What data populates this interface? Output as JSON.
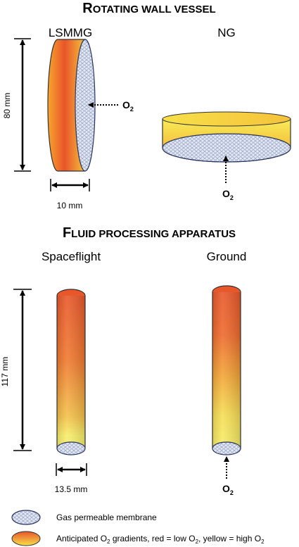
{
  "rwv": {
    "title_first": "R",
    "title_rest": "OTATING WALL VESSEL",
    "label_left": "LSMMG",
    "label_right": "NG",
    "height_dim": "80 mm",
    "width_dim": "10 mm",
    "o2_main": "O",
    "o2_sub": "2"
  },
  "fpa": {
    "title_first": "F",
    "title_rest": "LUID PROCESSING APPARATUS",
    "label_left": "Spaceflight",
    "label_right": "Ground",
    "height_dim": "117 mm",
    "width_dim": "13.5 mm",
    "o2_main": "O",
    "o2_sub": "2"
  },
  "legend": {
    "membrane": "Gas permeable membrane",
    "gradient_a": "Anticipated O",
    "gradient_sub1": "2",
    "gradient_b": " gradients, red = low O",
    "gradient_sub2": "2",
    "gradient_c": ", yellow = high O",
    "gradient_sub3": "2"
  },
  "colors": {
    "red": "#e8552a",
    "orange": "#f49a2c",
    "yellow": "#f7ec58",
    "membrane_fill": "#dfe6f3",
    "membrane_stroke": "#3a4a7a"
  }
}
